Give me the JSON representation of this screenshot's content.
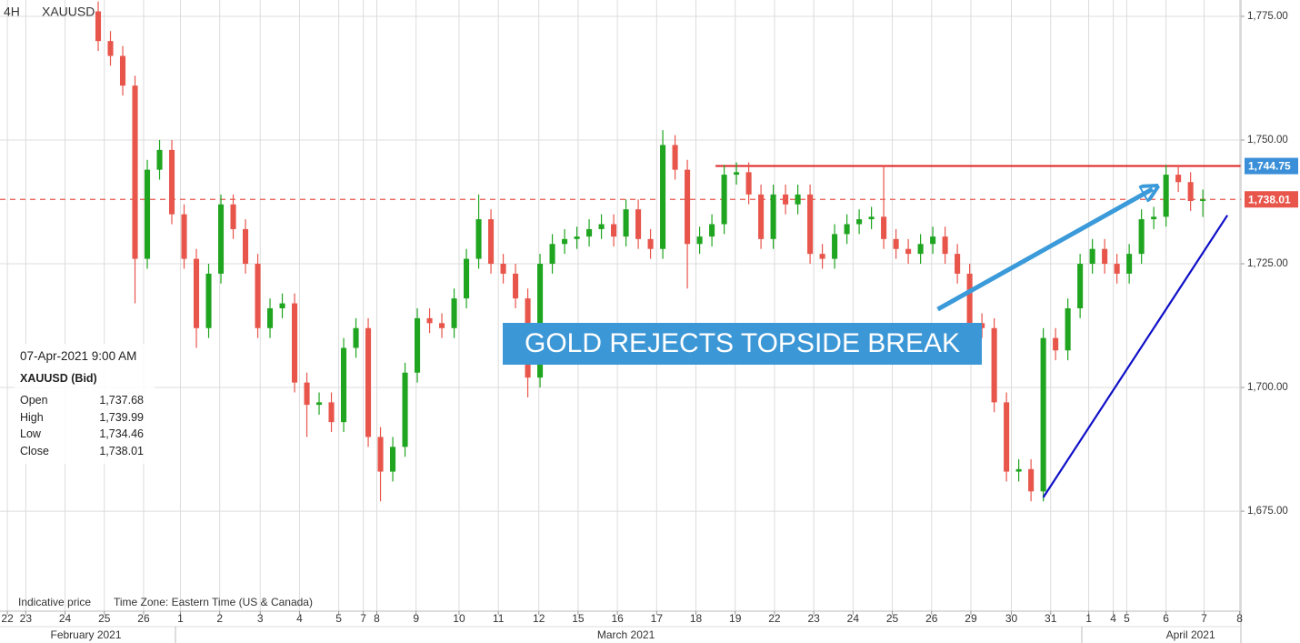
{
  "chart_data": {
    "type": "candlestick",
    "timeframe": "4H",
    "symbol": "XAUUSD",
    "annotation": "GOLD REJECTS TOPSIDE BREAK",
    "footer": [
      "Indicative price",
      "Time Zone: Eastern Time (US & Canada)"
    ],
    "info": {
      "date": "07-Apr-2021 9:00 AM",
      "instrument": "XAUUSD (Bid)",
      "rows": [
        [
          "Open",
          "1,737.68"
        ],
        [
          "High",
          "1,739.99"
        ],
        [
          "Low",
          "1,734.46"
        ],
        [
          "Close",
          "1,738.01"
        ]
      ]
    },
    "ylim": [
      1654.8,
      1778.3
    ],
    "yticks": [
      {
        "value": 1775,
        "label": "1,775.00"
      },
      {
        "value": 1750,
        "label": "1,750.00"
      },
      {
        "value": 1725,
        "label": "1,725.00"
      },
      {
        "value": 1700,
        "label": "1,700.00"
      },
      {
        "value": 1675,
        "label": "1,675.00"
      }
    ],
    "xlim": [
      0,
      101.1
    ],
    "xticks": [
      {
        "value": 0.6,
        "label": "22"
      },
      {
        "value": 2.1,
        "label": "23"
      },
      {
        "value": 5.3,
        "label": "24"
      },
      {
        "value": 8.5,
        "label": "25"
      },
      {
        "value": 11.7,
        "label": "26"
      },
      {
        "value": 14.7,
        "label": "1"
      },
      {
        "value": 17.9,
        "label": "2"
      },
      {
        "value": 21.2,
        "label": "3"
      },
      {
        "value": 24.4,
        "label": "4"
      },
      {
        "value": 27.6,
        "label": "5"
      },
      {
        "value": 29.6,
        "label": "7"
      },
      {
        "value": 30.7,
        "label": "8"
      },
      {
        "value": 33.9,
        "label": "9"
      },
      {
        "value": 37.4,
        "label": "10"
      },
      {
        "value": 40.6,
        "label": "11"
      },
      {
        "value": 43.9,
        "label": "12"
      },
      {
        "value": 47.1,
        "label": "15"
      },
      {
        "value": 50.3,
        "label": "16"
      },
      {
        "value": 53.5,
        "label": "17"
      },
      {
        "value": 56.7,
        "label": "18"
      },
      {
        "value": 59.9,
        "label": "19"
      },
      {
        "value": 63.1,
        "label": "22"
      },
      {
        "value": 66.3,
        "label": "23"
      },
      {
        "value": 69.5,
        "label": "24"
      },
      {
        "value": 72.7,
        "label": "25"
      },
      {
        "value": 75.9,
        "label": "26"
      },
      {
        "value": 79.1,
        "label": "29"
      },
      {
        "value": 82.4,
        "label": "30"
      },
      {
        "value": 85.6,
        "label": "31"
      },
      {
        "value": 88.7,
        "label": "1"
      },
      {
        "value": 90.7,
        "label": "4"
      },
      {
        "value": 91.8,
        "label": "5"
      },
      {
        "value": 95,
        "label": "6"
      },
      {
        "value": 98.1,
        "label": "7"
      },
      {
        "value": 101,
        "label": "8"
      }
    ],
    "months": [
      {
        "value": 7,
        "label": "February 2021"
      },
      {
        "value": 51,
        "label": "March 2021"
      },
      {
        "value": 97,
        "label": "April 2021"
      }
    ],
    "grid": true,
    "up_color": "#1fa51f",
    "down_color": "#e8554b",
    "x": [
      8,
      9,
      10,
      11,
      12,
      13,
      14,
      15,
      16,
      17,
      18,
      19,
      20,
      21,
      22,
      23,
      24,
      25,
      26,
      27,
      28,
      29,
      30,
      31,
      32,
      33,
      34,
      35,
      36,
      37,
      38,
      39,
      40,
      41,
      42,
      43,
      44,
      45,
      46,
      47,
      48,
      49,
      50,
      51,
      52,
      53,
      54,
      55,
      56,
      57,
      58,
      59,
      60,
      61,
      62,
      63,
      64,
      65,
      66,
      67,
      68,
      69,
      70,
      71,
      72,
      73,
      74,
      75,
      76,
      77,
      78,
      79,
      80,
      81,
      82,
      83,
      84,
      85,
      86,
      87,
      88,
      89,
      90,
      91,
      92,
      93,
      94,
      95,
      96,
      97,
      98
    ],
    "open": [
      1776,
      1770,
      1767,
      1761,
      1726,
      1744,
      1748,
      1735,
      1726,
      1712,
      1723,
      1737,
      1732,
      1725,
      1712,
      1716,
      1717,
      1701,
      1696.5,
      1697,
      1693,
      1708,
      1712,
      1690,
      1683,
      1688,
      1703,
      1714,
      1713,
      1712,
      1718,
      1726,
      1734,
      1725,
      1723,
      1718,
      1702,
      1725,
      1729,
      1730,
      1730.5,
      1732,
      1733,
      1730.5,
      1736,
      1730,
      1728,
      1749,
      1744,
      1729,
      1730.5,
      1733,
      1743,
      1743.5,
      1739,
      1730,
      1739,
      1737,
      1739,
      1727,
      1726,
      1731,
      1733,
      1734,
      1734.5,
      1730,
      1728,
      1727,
      1729,
      1730.5,
      1727,
      1723,
      1713,
      1712,
      1697,
      1683,
      1683.5,
      1679,
      1710,
      1707.5,
      1716,
      1725,
      1728,
      1725,
      1723,
      1727,
      1734,
      1734.5,
      1743,
      1741.5,
      1737.68
    ],
    "high": [
      1778,
      1772,
      1769,
      1763,
      1746,
      1750,
      1750,
      1737,
      1728,
      1725,
      1739,
      1739,
      1734,
      1727,
      1718,
      1719,
      1719,
      1703,
      1699,
      1699,
      1710,
      1714,
      1714,
      1692,
      1690,
      1705,
      1716,
      1716,
      1715,
      1720,
      1728,
      1739,
      1736,
      1727,
      1725,
      1720,
      1727,
      1731,
      1732,
      1732.5,
      1734,
      1735,
      1735,
      1738,
      1738,
      1732,
      1752,
      1751,
      1746,
      1732.5,
      1735,
      1745,
      1745.5,
      1745.5,
      1741,
      1741,
      1741,
      1741,
      1741,
      1729,
      1733,
      1735,
      1736,
      1736.5,
      1744.75,
      1732,
      1730,
      1731,
      1732.5,
      1732.5,
      1729,
      1725,
      1715,
      1714,
      1699,
      1685.5,
      1685.5,
      1712,
      1712,
      1718,
      1727,
      1730,
      1730,
      1727,
      1729,
      1736,
      1736.5,
      1745,
      1745,
      1743.5,
      1739.99
    ],
    "low": [
      1768,
      1765,
      1759,
      1717,
      1724,
      1742,
      1733,
      1724,
      1708,
      1710,
      1721,
      1730,
      1723,
      1710,
      1710,
      1714,
      1699,
      1690,
      1694.5,
      1691,
      1691,
      1706,
      1688,
      1677,
      1681,
      1686,
      1701,
      1711,
      1710,
      1710,
      1716,
      1724,
      1723,
      1721,
      1716,
      1698,
      1700,
      1723,
      1727,
      1728,
      1728.5,
      1730,
      1728.5,
      1728.5,
      1728,
      1726,
      1726,
      1742,
      1720,
      1727,
      1728.5,
      1731,
      1741,
      1737,
      1728,
      1728,
      1735,
      1735,
      1725,
      1724,
      1724,
      1729,
      1731,
      1732,
      1728,
      1726,
      1725,
      1725,
      1727,
      1725,
      1721,
      1711,
      1710,
      1695,
      1681,
      1681,
      1677,
      1677,
      1705.5,
      1705.5,
      1714,
      1723,
      1723,
      1721,
      1721,
      1725,
      1732,
      1732.5,
      1739.5,
      1735.68,
      1734.46
    ],
    "close": [
      1770,
      1767,
      1761,
      1726,
      1744,
      1748,
      1735,
      1726,
      1712,
      1723,
      1737,
      1732,
      1725,
      1712,
      1716,
      1717,
      1701,
      1696.5,
      1697,
      1693,
      1708,
      1712,
      1690,
      1683,
      1688,
      1703,
      1714,
      1713,
      1712,
      1718,
      1726,
      1734,
      1725,
      1723,
      1718,
      1702,
      1725,
      1729,
      1730,
      1730.5,
      1732,
      1733,
      1730.5,
      1736,
      1730,
      1728,
      1749,
      1744,
      1729,
      1730.5,
      1733,
      1743,
      1743.5,
      1739,
      1730,
      1739,
      1737,
      1739,
      1727,
      1726,
      1731,
      1733,
      1734,
      1734.5,
      1730,
      1728,
      1727,
      1729,
      1730.5,
      1727,
      1723,
      1713,
      1712,
      1697,
      1683,
      1683.5,
      1679,
      1710,
      1707.5,
      1716,
      1725,
      1728,
      1725,
      1723,
      1727,
      1734,
      1734.5,
      1743,
      1741.5,
      1737.68,
      1738.01
    ],
    "levels": [
      {
        "value": 1744.75,
        "label": "1,744.75",
        "color": "#e02020",
        "from": 58.3,
        "style": "solid",
        "tag_color": "#3a8fd8"
      },
      {
        "value": 1738.01,
        "label": "1,738.01",
        "color": "#e8554b",
        "from": 0,
        "style": "dashed",
        "tag_color": "#e8554b"
      }
    ],
    "trendlines": [
      {
        "x": [
          85,
          100
        ],
        "y": [
          1677.8,
          1734.8
        ],
        "color": "#1010c8",
        "arrow": false
      },
      {
        "x": [
          76.4,
          93.9
        ],
        "y": [
          1715.8,
          1740.1
        ],
        "color": "#3b9ad9",
        "arrow": true
      }
    ]
  }
}
